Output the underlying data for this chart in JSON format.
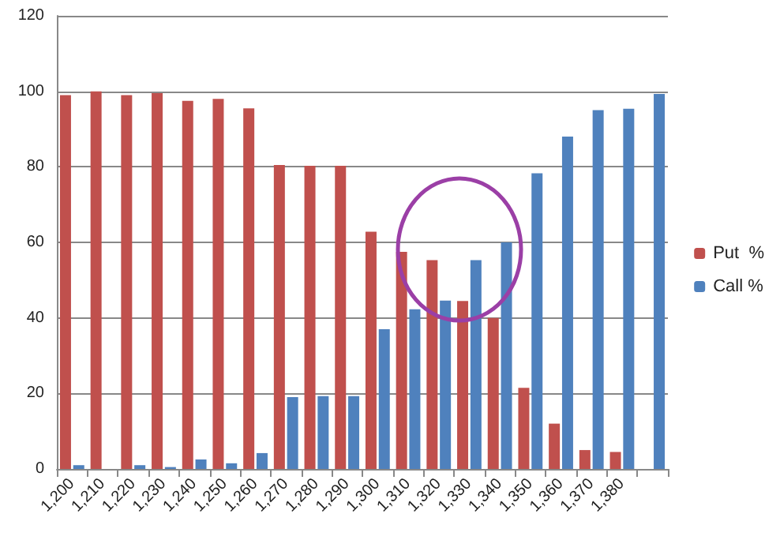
{
  "chart_data": {
    "type": "bar",
    "categories": [
      "1,200",
      "1,210",
      "1,220",
      "1,230",
      "1,240",
      "1,250",
      "1,260",
      "1,270",
      "1,280",
      "1,290",
      "1,300",
      "1,310",
      "1,320",
      "1,330",
      "1,340",
      "1,350",
      "1,360",
      "1,370",
      "1,380",
      null
    ],
    "series": [
      {
        "name": "Put  %",
        "color": "#c0504d",
        "values": [
          99,
          100,
          99,
          99.5,
          97.5,
          98,
          95.5,
          80.5,
          80.3,
          80.3,
          62.8,
          57.5,
          55.3,
          44.5,
          40,
          21.5,
          12,
          5,
          4.5,
          null
        ]
      },
      {
        "name": "Call %",
        "color": "#4f81bd",
        "values": [
          1,
          0,
          1,
          0.5,
          2.5,
          1.5,
          4.2,
          19,
          19.3,
          19.3,
          37,
          42.3,
          44.6,
          55.3,
          60,
          78.3,
          88,
          95,
          95.4,
          99.3
        ]
      }
    ],
    "ylim": [
      0,
      120
    ],
    "yticks": [
      0,
      20,
      40,
      60,
      80,
      100,
      120
    ],
    "grid": "y",
    "legend": "right"
  }
}
